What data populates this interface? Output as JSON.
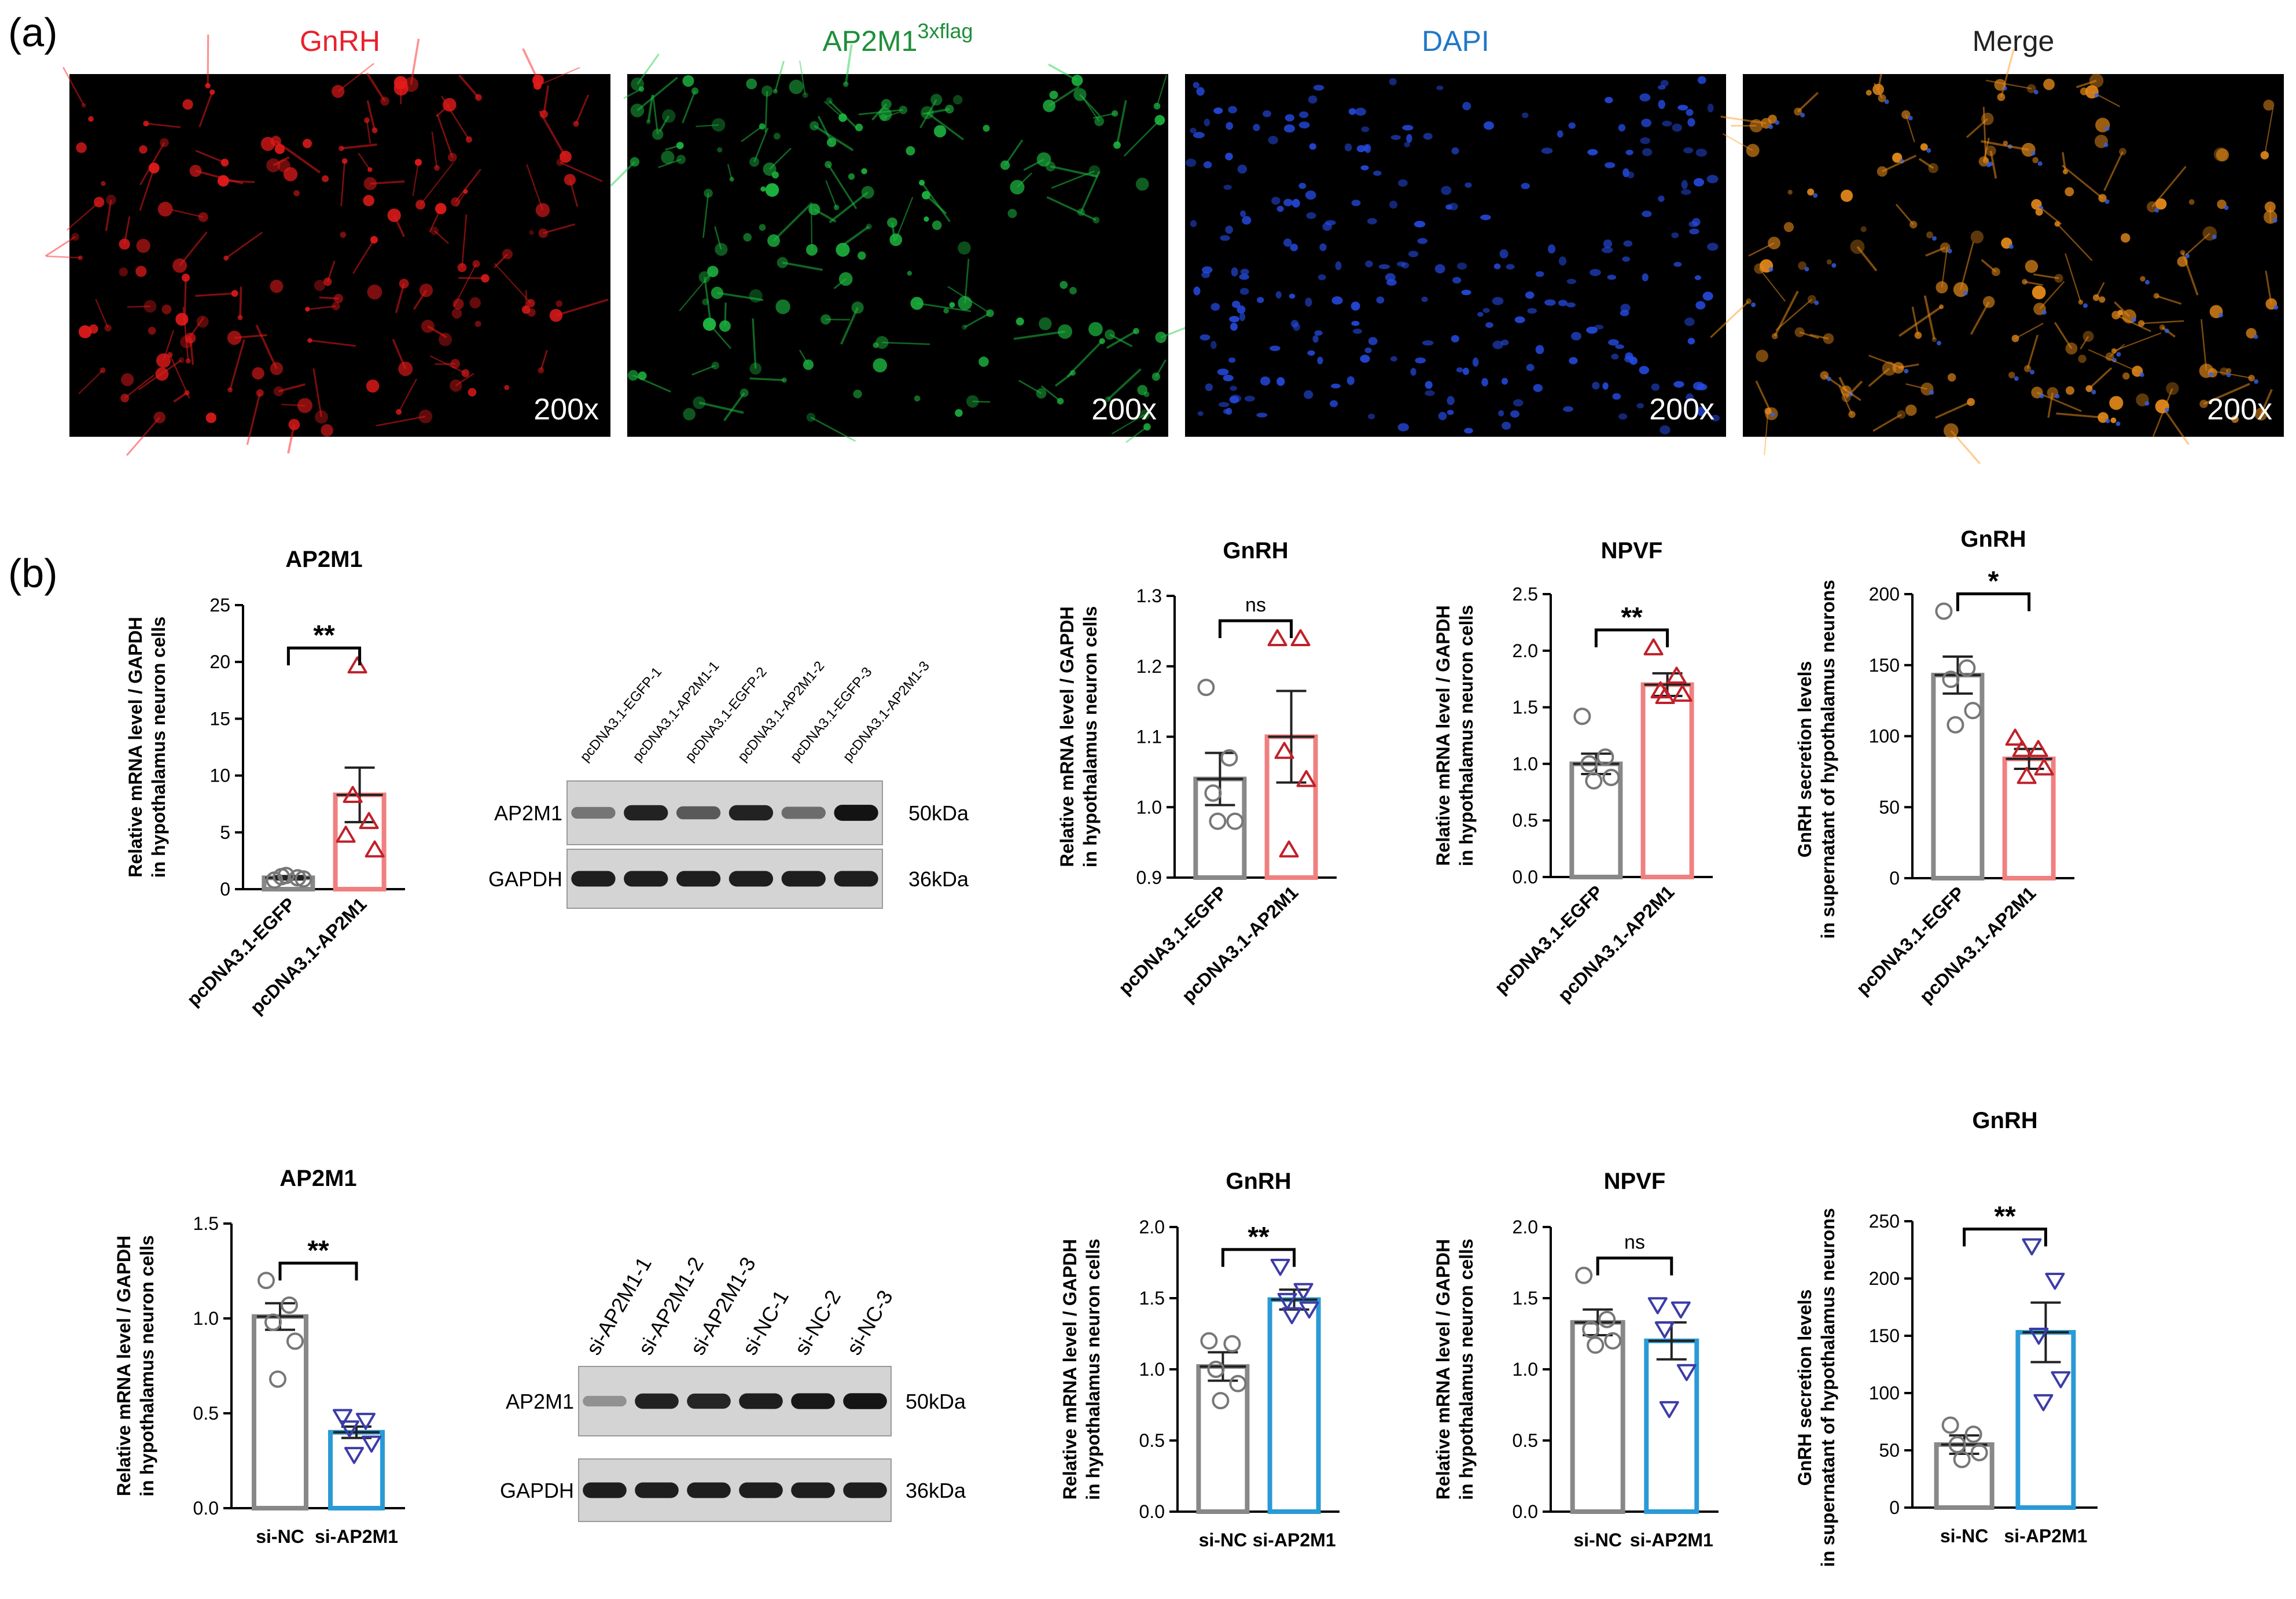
{
  "panel_a": {
    "label": "(a)",
    "channels": [
      {
        "title": "GnRH",
        "color": "#e8212d",
        "magnification": "200x",
        "cell_color": "#ff1e1e"
      },
      {
        "title": "AP2M1",
        "title_sup": "3xflag",
        "color": "#1e8f3a",
        "magnification": "200x",
        "cell_color": "#22d04a"
      },
      {
        "title": "DAPI",
        "color": "#1f78c8",
        "magnification": "200x",
        "cell_color": "#2b55ff"
      },
      {
        "title": "Merge",
        "color": "#222222",
        "magnification": "200x",
        "cell_color": "#ff9a1e"
      }
    ]
  },
  "panel_b": {
    "label": "(b)"
  },
  "blots": [
    {
      "lanes": [
        "pcDNA3.1-EGFP-1",
        "pcDNA3.1-AP2M1-1",
        "pcDNA3.1-EGFP-2",
        "pcDNA3.1-AP2M1-2",
        "pcDNA3.1-EGFP-3",
        "pcDNA3.1-AP2M1-3"
      ],
      "rows": [
        {
          "protein": "AP2M1",
          "size": "50kDa",
          "intensities": [
            0.45,
            0.9,
            0.6,
            0.9,
            0.5,
            0.98
          ]
        },
        {
          "protein": "GAPDH",
          "size": "36kDa",
          "intensities": [
            0.92,
            0.92,
            0.92,
            0.92,
            0.92,
            0.92
          ]
        }
      ]
    },
    {
      "lanes": [
        "si-AP2M1-1",
        "si-AP2M1-2",
        "si-AP2M1-3",
        "si-NC-1",
        "si-NC-2",
        "si-NC-3"
      ],
      "rows": [
        {
          "protein": "AP2M1",
          "size": "50kDa",
          "intensities": [
            0.3,
            0.9,
            0.88,
            0.92,
            0.95,
            0.97
          ]
        },
        {
          "protein": "GAPDH",
          "size": "36kDa",
          "intensities": [
            0.92,
            0.92,
            0.92,
            0.92,
            0.92,
            0.92
          ]
        }
      ]
    }
  ],
  "chart_data": [
    {
      "type": "bar",
      "title": "AP2M1",
      "ylabel_lines": [
        "Relative mRNA level / GAPDH",
        "in hypothalamus neuron cells"
      ],
      "ylim": [
        0,
        25
      ],
      "yticks": [
        0,
        5,
        10,
        15,
        20,
        25
      ],
      "categories": [
        "pcDNA3.1-EGFP",
        "pcDNA3.1-AP2M1"
      ],
      "means": [
        1.0,
        8.3
      ],
      "sem": [
        0.15,
        2.4
      ],
      "colors": [
        "#888888",
        "#f08080"
      ],
      "marker_colors": [
        "#777777",
        "#c0202a"
      ],
      "markers": [
        "circle",
        "triangle-up"
      ],
      "points": [
        [
          0.8,
          1.0,
          1.1,
          0.9,
          1.2
        ],
        [
          4.8,
          6.0,
          8.3,
          3.5,
          19.7
        ]
      ],
      "significance": "**",
      "rotated_xlabels": true
    },
    {
      "type": "bar",
      "title": "GnRH",
      "ylabel_lines": [
        "Relative mRNA level / GAPDH",
        "in hypothalamus neuron cells"
      ],
      "ylim": [
        0.9,
        1.3
      ],
      "yticks": [
        0.9,
        1.0,
        1.1,
        1.2,
        1.3
      ],
      "categories": [
        "pcDNA3.1-EGFP",
        "pcDNA3.1-AP2M1"
      ],
      "means": [
        1.04,
        1.1
      ],
      "sem": [
        0.037,
        0.065
      ],
      "colors": [
        "#888888",
        "#f08080"
      ],
      "marker_colors": [
        "#777777",
        "#c0202a"
      ],
      "markers": [
        "circle",
        "triangle-up"
      ],
      "points": [
        [
          1.17,
          1.07,
          1.02,
          0.98,
          0.98
        ],
        [
          1.24,
          1.24,
          1.08,
          1.04,
          0.94
        ]
      ],
      "significance": "ns",
      "rotated_xlabels": true
    },
    {
      "type": "bar",
      "title": "NPVF",
      "ylabel_lines": [
        "Relative mRNA level / GAPDH",
        "in hypothalamus neuron cells"
      ],
      "ylim": [
        0,
        2.5
      ],
      "yticks": [
        0.0,
        0.5,
        1.0,
        1.5,
        2.0,
        2.5
      ],
      "categories": [
        "pcDNA3.1-EGFP",
        "pcDNA3.1-AP2M1"
      ],
      "means": [
        1.0,
        1.7
      ],
      "sem": [
        0.09,
        0.1
      ],
      "colors": [
        "#888888",
        "#f08080"
      ],
      "marker_colors": [
        "#777777",
        "#c0202a"
      ],
      "markers": [
        "circle",
        "triangle-up"
      ],
      "points": [
        [
          1.42,
          1.06,
          1.0,
          0.88,
          0.85
        ],
        [
          2.03,
          1.78,
          1.65,
          1.62,
          1.6
        ]
      ],
      "significance": "**",
      "rotated_xlabels": true
    },
    {
      "type": "bar",
      "title": "GnRH",
      "ylabel_lines": [
        "GnRH secretion levels",
        "in supernatant of hypothalamus neurons"
      ],
      "ylim": [
        0,
        200
      ],
      "yticks": [
        0,
        50,
        100,
        150,
        200
      ],
      "categories": [
        "pcDNA3.1-EGFP",
        "pcDNA3.1-AP2M1"
      ],
      "means": [
        143,
        84
      ],
      "sem": [
        13,
        7
      ],
      "colors": [
        "#888888",
        "#f08080"
      ],
      "marker_colors": [
        "#777777",
        "#c0202a"
      ],
      "markers": [
        "circle",
        "triangle-up"
      ],
      "points": [
        [
          188,
          148,
          140,
          118,
          108
        ],
        [
          99,
          91,
          91,
          78,
          72
        ]
      ],
      "significance": "*",
      "rotated_xlabels": true
    },
    {
      "type": "bar",
      "title": "AP2M1",
      "ylabel_lines": [
        "Relative mRNA level / GAPDH",
        "in hypothalamus neuron cells"
      ],
      "ylim": [
        0,
        1.5
      ],
      "yticks": [
        0.0,
        0.5,
        1.0,
        1.5
      ],
      "categories": [
        "si-NC",
        "si-AP2M1"
      ],
      "means": [
        1.01,
        0.4
      ],
      "sem": [
        0.07,
        0.03
      ],
      "colors": [
        "#888888",
        "#2a9ad6"
      ],
      "marker_colors": [
        "#777777",
        "#3c3ca8"
      ],
      "markers": [
        "circle",
        "triangle-down"
      ],
      "points": [
        [
          1.2,
          1.07,
          0.98,
          0.88,
          0.68
        ],
        [
          0.48,
          0.46,
          0.42,
          0.34,
          0.28
        ]
      ],
      "significance": "**",
      "rotated_xlabels": false
    },
    {
      "type": "bar",
      "title": "GnRH",
      "ylabel_lines": [
        "Relative mRNA level / GAPDH",
        "in hypothalamus neuron cells"
      ],
      "ylim": [
        0,
        2.0
      ],
      "yticks": [
        0.0,
        0.5,
        1.0,
        1.5,
        2.0
      ],
      "categories": [
        "si-NC",
        "si-AP2M1"
      ],
      "means": [
        1.02,
        1.49
      ],
      "sem": [
        0.1,
        0.07
      ],
      "colors": [
        "#888888",
        "#2a9ad6"
      ],
      "marker_colors": [
        "#777777",
        "#3c3ca8"
      ],
      "markers": [
        "circle",
        "triangle-down"
      ],
      "points": [
        [
          1.2,
          1.18,
          1.0,
          0.9,
          0.78
        ],
        [
          1.72,
          1.55,
          1.48,
          1.42,
          1.38
        ]
      ],
      "significance": "**",
      "rotated_xlabels": false
    },
    {
      "type": "bar",
      "title": "NPVF",
      "ylabel_lines": [
        "Relative mRNA level / GAPDH",
        "in hypothalamus neuron cells"
      ],
      "ylim": [
        0,
        2.0
      ],
      "yticks": [
        0.0,
        0.5,
        1.0,
        1.5,
        2.0
      ],
      "categories": [
        "si-NC",
        "si-AP2M1"
      ],
      "means": [
        1.33,
        1.2
      ],
      "sem": [
        0.09,
        0.13
      ],
      "colors": [
        "#888888",
        "#2a9ad6"
      ],
      "marker_colors": [
        "#777777",
        "#3c3ca8"
      ],
      "markers": [
        "circle",
        "triangle-down"
      ],
      "points": [
        [
          1.66,
          1.35,
          1.28,
          1.2,
          1.17
        ],
        [
          1.45,
          1.42,
          1.28,
          0.98,
          0.72
        ]
      ],
      "significance": "ns",
      "rotated_xlabels": false
    },
    {
      "type": "bar",
      "title": "GnRH",
      "ylabel_lines": [
        "GnRH secretion levels",
        "in supernatant of hypothalamus neurons"
      ],
      "ylim": [
        0,
        250
      ],
      "yticks": [
        0,
        50,
        100,
        150,
        200,
        250
      ],
      "categories": [
        "si-NC",
        "si-AP2M1"
      ],
      "means": [
        55,
        153
      ],
      "sem": [
        8,
        26
      ],
      "colors": [
        "#888888",
        "#2a9ad6"
      ],
      "marker_colors": [
        "#777777",
        "#3c3ca8"
      ],
      "markers": [
        "circle",
        "triangle-down"
      ],
      "points": [
        [
          72,
          64,
          55,
          48,
          42
        ],
        [
          228,
          198,
          150,
          112,
          92
        ]
      ],
      "significance": "**",
      "rotated_xlabels": false
    }
  ]
}
